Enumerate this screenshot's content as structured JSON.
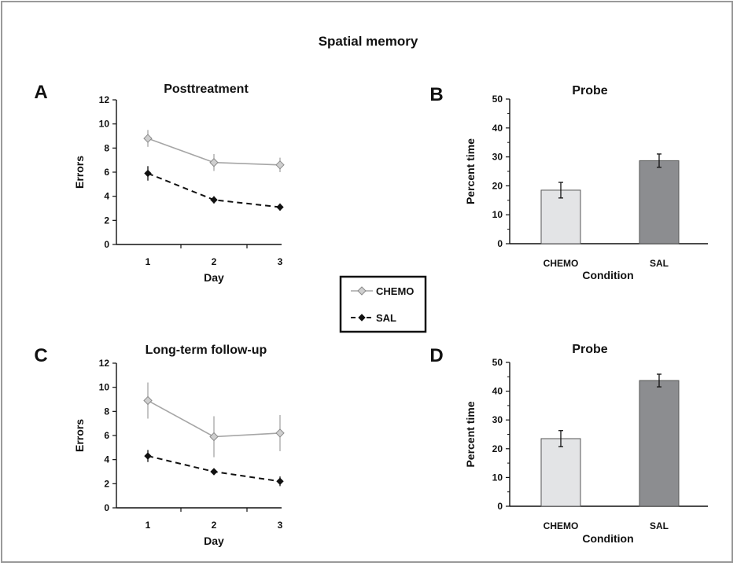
{
  "figure": {
    "title": "Spatial memory"
  },
  "legend": {
    "entries": [
      {
        "label": "CHEMO",
        "color": "#a6a6a6",
        "dash": "solid",
        "marker": "diamond-open"
      },
      {
        "label": "SAL",
        "color": "#111111",
        "dash": "dashed",
        "marker": "diamond-filled"
      }
    ]
  },
  "colors": {
    "chemo_line": "#a6a6a6",
    "chemo_marker_fill": "#cfcfcf",
    "sal_line": "#111111",
    "chemo_bar": "#e3e4e6",
    "sal_bar": "#8c8d90"
  },
  "chart_data": [
    {
      "id": "A",
      "letter": "A",
      "type": "line",
      "title": "Posttreatment",
      "xlabel": "Day",
      "ylabel": "Errors",
      "x": [
        1,
        2,
        3
      ],
      "xticks": [
        "1",
        "2",
        "3"
      ],
      "ylim": [
        0,
        12
      ],
      "yticks": [
        0,
        2,
        4,
        6,
        8,
        10,
        12
      ],
      "series": [
        {
          "name": "CHEMO",
          "values": [
            8.8,
            6.8,
            6.6
          ],
          "errors": [
            0.7,
            0.7,
            0.6
          ]
        },
        {
          "name": "SAL",
          "values": [
            5.9,
            3.7,
            3.1
          ],
          "errors": [
            0.6,
            0.3,
            0.3
          ]
        }
      ]
    },
    {
      "id": "B",
      "letter": "B",
      "type": "bar",
      "title": "Probe",
      "xlabel": "Condition",
      "ylabel": "Percent time",
      "categories": [
        "CHEMO",
        "SAL"
      ],
      "values": [
        18.5,
        28.7
      ],
      "errors": [
        2.7,
        2.3
      ],
      "ylim": [
        0,
        50
      ],
      "yticks": [
        0,
        10,
        20,
        30,
        40,
        50
      ]
    },
    {
      "id": "C",
      "letter": "C",
      "type": "line",
      "title": "Long-term  follow-up",
      "xlabel": "Day",
      "ylabel": "Errors",
      "x": [
        1,
        2,
        3
      ],
      "xticks": [
        "1",
        "2",
        "3"
      ],
      "ylim": [
        0,
        12
      ],
      "yticks": [
        0,
        2,
        4,
        6,
        8,
        10,
        12
      ],
      "series": [
        {
          "name": "CHEMO",
          "values": [
            8.9,
            5.9,
            6.2
          ],
          "errors": [
            1.5,
            1.7,
            1.5
          ]
        },
        {
          "name": "SAL",
          "values": [
            4.3,
            3.0,
            2.2
          ],
          "errors": [
            0.5,
            0.15,
            0.4
          ]
        }
      ]
    },
    {
      "id": "D",
      "letter": "D",
      "type": "bar",
      "title": "Probe",
      "xlabel": "Condition",
      "ylabel": "Percent time",
      "categories": [
        "CHEMO",
        "SAL"
      ],
      "values": [
        23.5,
        43.7
      ],
      "errors": [
        2.8,
        2.2
      ],
      "ylim": [
        0,
        50
      ],
      "yticks": [
        0,
        10,
        20,
        30,
        40,
        50
      ]
    }
  ]
}
